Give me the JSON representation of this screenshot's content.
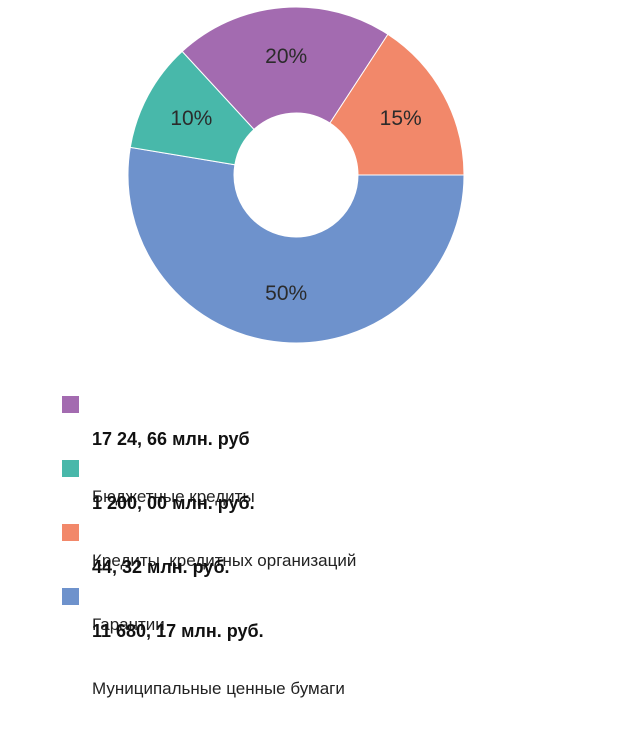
{
  "colors": {
    "budget_credits": "#a36bb0",
    "bank_credits": "#48b8aa",
    "guarantees": "#f2886a",
    "municipal_securities": "#6e92cc"
  },
  "chart_data": {
    "type": "pie",
    "donut": true,
    "start_angle_deg": 0,
    "direction": "clockwise-from-right",
    "slices": [
      {
        "key": "municipal_securities",
        "value": 50,
        "label": "50%",
        "color": "#6e92cc"
      },
      {
        "key": "bank_credits",
        "value": 10,
        "label": "10%",
        "color": "#48b8aa"
      },
      {
        "key": "budget_credits",
        "value": 20,
        "label": "20%",
        "color": "#a36bb0"
      },
      {
        "key": "guarantees",
        "value": 15,
        "label": "15%",
        "color": "#f2886a"
      }
    ]
  },
  "legend": {
    "items": [
      {
        "value": "17 24, 66 млн. руб",
        "name": "Бюджетные кредиты",
        "color": "#a36bb0"
      },
      {
        "value": "1 200, 00 млн. руб.",
        "name": "Кредиты  кредитных организаций",
        "color": "#48b8aa"
      },
      {
        "value": "44, 32 млн. руб.",
        "name": "Гарантии",
        "color": "#f2886a"
      },
      {
        "value": "11 680, 17 млн. руб.",
        "name": "Муниципальные ценные бумаги",
        "color": "#6e92cc"
      }
    ]
  }
}
